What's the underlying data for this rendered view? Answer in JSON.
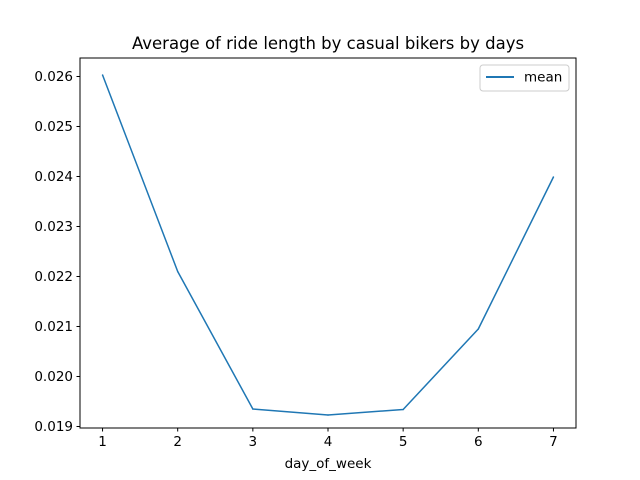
{
  "chart_data": {
    "type": "line",
    "title": "Average of ride length by casual bikers by days",
    "xlabel": "day_of_week",
    "ylabel": "",
    "x": [
      1,
      2,
      3,
      4,
      5,
      6,
      7
    ],
    "series": [
      {
        "name": "mean",
        "color": "#1f77b4",
        "values": [
          0.02603,
          0.0221,
          0.01935,
          0.01923,
          0.01934,
          0.02095,
          0.02399
        ]
      }
    ],
    "xlim": [
      0.7,
      7.3
    ],
    "ylim": [
      0.01897,
      0.02637
    ],
    "xticks": [
      1,
      2,
      3,
      4,
      5,
      6,
      7
    ],
    "yticks": [
      0.019,
      0.02,
      0.021,
      0.022,
      0.023,
      0.024,
      0.025,
      0.026
    ],
    "ytick_labels": [
      "0.019",
      "0.020",
      "0.021",
      "0.022",
      "0.023",
      "0.024",
      "0.025",
      "0.026"
    ],
    "grid": false,
    "legend": "top-right"
  }
}
